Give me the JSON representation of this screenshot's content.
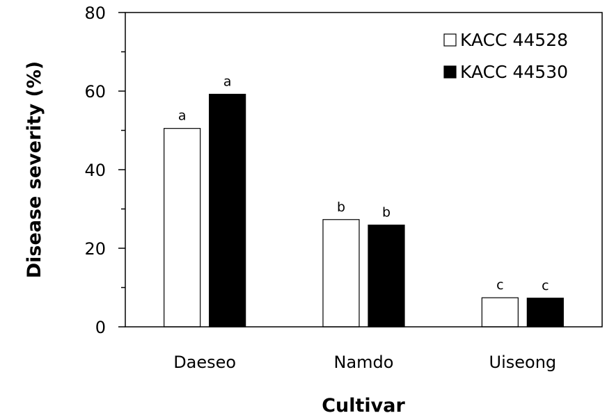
{
  "chart_data": {
    "type": "bar",
    "title": "",
    "xlabel": "Cultivar",
    "ylabel": "Disease severity (%)",
    "ylim": [
      0,
      80
    ],
    "yticks": [
      0,
      20,
      40,
      60,
      80
    ],
    "grid": false,
    "legend_position": "top-right",
    "categories": [
      "Daeseo",
      "Namdo",
      "Uiseong"
    ],
    "series": [
      {
        "name": "KACC 44528",
        "color": "#ffffff",
        "values": [
          50.5,
          27.3,
          7.4
        ],
        "labels": [
          "a",
          "b",
          "c"
        ]
      },
      {
        "name": "KACC 44530",
        "color": "#000000",
        "values": [
          59.2,
          25.9,
          7.3
        ],
        "labels": [
          "a",
          "b",
          "c"
        ]
      }
    ]
  }
}
